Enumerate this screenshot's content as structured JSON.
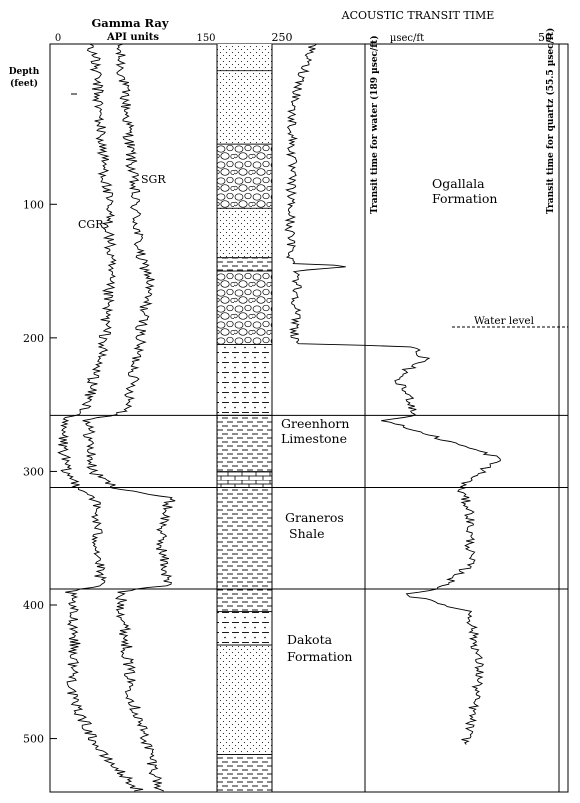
{
  "gamma_header": {
    "title": "Gamma Ray",
    "units": "API  units",
    "min": "0",
    "max": "150"
  },
  "acoustic_header": {
    "title": "ACOUSTIC TRANSIT TIME",
    "left_value": "250",
    "units": "µsec/ft",
    "right_value": "50"
  },
  "depth_axis": {
    "label_line1": "Depth",
    "label_line2": "(feet)",
    "ticks": [
      "100",
      "200",
      "300",
      "400",
      "500"
    ]
  },
  "curve_labels": {
    "sgr": "SGR",
    "cgr": "CGR"
  },
  "reference_lines": {
    "water": "Transit time for water (189 µsec/ft)",
    "quartz": "Transit time for quartz (55.5 µsec/ft)",
    "water_level": "Water level"
  },
  "formations": [
    {
      "line1": "Ogallala",
      "line2": "Formation"
    },
    {
      "line1": "Greenhorn",
      "line2": "Limestone"
    },
    {
      "line1": "Graneros",
      "line2": "Shale"
    },
    {
      "line1": "Dakota",
      "line2": "Formation"
    }
  ],
  "lithology_column": [
    {
      "top": 0,
      "bottom": 55,
      "type": "sandstone"
    },
    {
      "top": 55,
      "bottom": 103,
      "type": "gravel"
    },
    {
      "top": 103,
      "bottom": 140,
      "type": "sandstone"
    },
    {
      "top": 140,
      "bottom": 150,
      "type": "shale"
    },
    {
      "top": 150,
      "bottom": 205,
      "type": "gravel"
    },
    {
      "top": 205,
      "bottom": 258,
      "type": "sandy-shale"
    },
    {
      "top": 258,
      "bottom": 300,
      "type": "shale"
    },
    {
      "top": 300,
      "bottom": 312,
      "type": "limestone"
    },
    {
      "top": 312,
      "bottom": 388,
      "type": "shale"
    },
    {
      "top": 388,
      "bottom": 405,
      "type": "shale"
    },
    {
      "top": 405,
      "bottom": 430,
      "type": "sandy-shale"
    },
    {
      "top": 430,
      "bottom": 512,
      "type": "sandstone"
    },
    {
      "top": 512,
      "bottom": 540,
      "type": "shale"
    }
  ],
  "formation_tops_ft": [
    258,
    312,
    388
  ],
  "water_level_ft": 210,
  "depth_range_ft": [
    -20,
    540
  ]
}
